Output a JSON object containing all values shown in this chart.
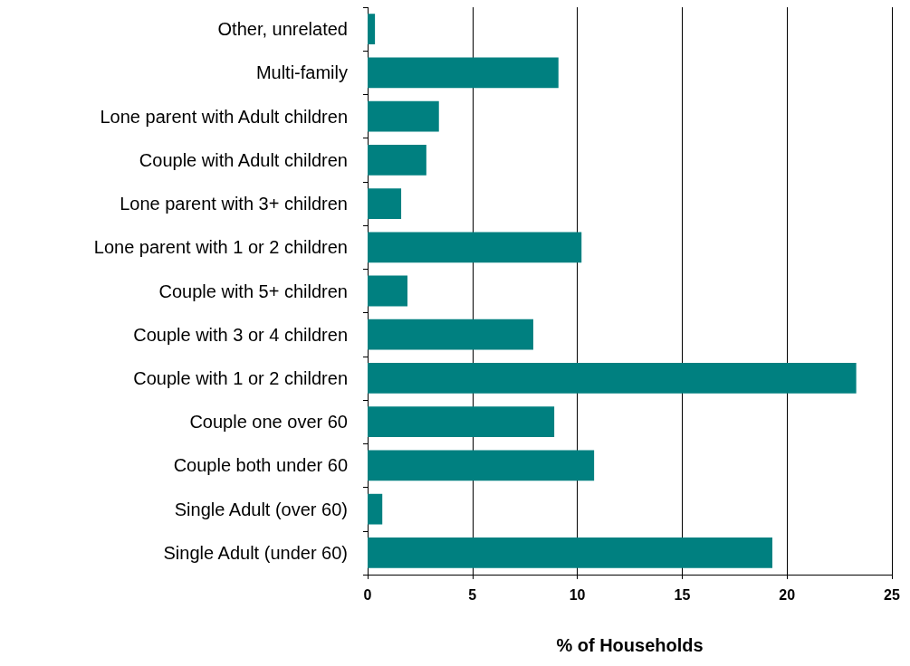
{
  "chart_data": {
    "type": "bar",
    "orientation": "horizontal",
    "xlabel": "% of Households",
    "categories": [
      "Other, unrelated",
      "Multi-family",
      "Lone parent with Adult children",
      "Couple with Adult children",
      "Lone parent with 3+ children",
      "Lone parent with 1 or 2 children",
      "Couple with 5+ children",
      "Couple with 3 or 4 children",
      "Couple with 1 or 2 children",
      "Couple one over 60",
      "Couple both under 60",
      "Single Adult (over 60)",
      "Single Adult (under 60)"
    ],
    "values": [
      0.35,
      9.1,
      3.4,
      2.8,
      1.6,
      10.2,
      1.9,
      7.9,
      23.3,
      8.9,
      10.8,
      0.7,
      19.3
    ],
    "color": "#008080",
    "xlim": [
      0,
      25
    ],
    "xticks": [
      0,
      5,
      10,
      15,
      20,
      25
    ],
    "grid": "x"
  }
}
